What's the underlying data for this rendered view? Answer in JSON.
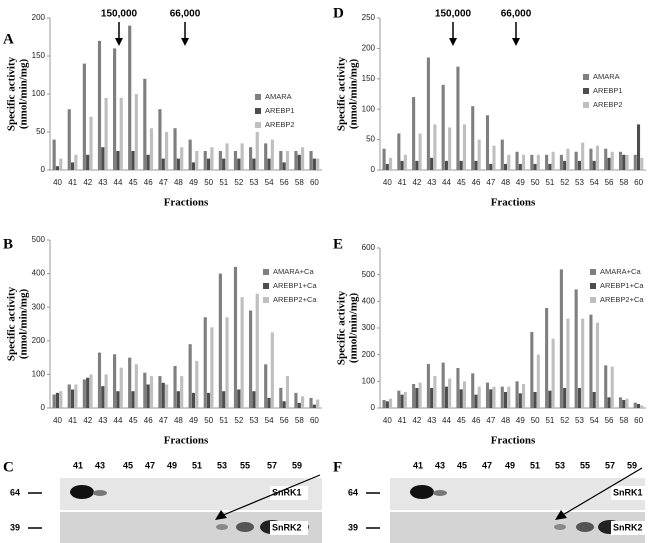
{
  "chart_data": [
    {
      "type": "bar",
      "panel": "A",
      "ylabel": [
        "Specific activity",
        "(nmol/min/mg)"
      ],
      "xlabel": "Fractions",
      "annotations": [
        "150,000",
        "66,000"
      ],
      "categories": [
        "40",
        "41",
        "42",
        "43",
        "44",
        "45",
        "46",
        "47",
        "48",
        "49",
        "50",
        "51",
        "52",
        "53",
        "54",
        "56",
        "58",
        "60"
      ],
      "ylim": [
        0,
        200
      ],
      "yticks": [
        0,
        50,
        100,
        150,
        200
      ],
      "series": [
        {
          "name": "AMARA",
          "color": "#7f7f7f",
          "values": [
            40,
            80,
            140,
            170,
            160,
            190,
            120,
            80,
            55,
            40,
            25,
            25,
            25,
            30,
            35,
            25,
            25,
            25
          ]
        },
        {
          "name": "AREBP1",
          "color": "#4d4d4d",
          "values": [
            5,
            10,
            20,
            30,
            25,
            25,
            20,
            15,
            15,
            10,
            15,
            15,
            15,
            15,
            15,
            10,
            20,
            15
          ]
        },
        {
          "name": "AREBP2",
          "color": "#bfbfbf",
          "values": [
            15,
            20,
            70,
            95,
            95,
            100,
            55,
            50,
            30,
            25,
            30,
            35,
            35,
            50,
            40,
            25,
            30,
            15
          ]
        }
      ]
    },
    {
      "type": "bar",
      "panel": "D",
      "ylabel": [
        "Specific activity",
        "(nmol/min/mg)"
      ],
      "xlabel": "Fractions",
      "annotations": [
        "150,000",
        "66,000"
      ],
      "categories": [
        "40",
        "41",
        "42",
        "43",
        "44",
        "45",
        "46",
        "47",
        "48",
        "49",
        "50",
        "51",
        "52",
        "53",
        "54",
        "56",
        "58",
        "60"
      ],
      "ylim": [
        0,
        250
      ],
      "yticks": [
        0,
        50,
        100,
        150,
        200,
        250
      ],
      "series": [
        {
          "name": "AMARA",
          "color": "#7f7f7f",
          "values": [
            35,
            60,
            120,
            185,
            140,
            170,
            105,
            90,
            50,
            30,
            25,
            25,
            25,
            30,
            35,
            35,
            30,
            25
          ]
        },
        {
          "name": "AREBP1",
          "color": "#4d4d4d",
          "values": [
            10,
            15,
            15,
            20,
            15,
            15,
            15,
            10,
            10,
            10,
            10,
            10,
            15,
            15,
            15,
            20,
            25,
            75
          ]
        },
        {
          "name": "AREBP2",
          "color": "#bfbfbf",
          "values": [
            20,
            25,
            60,
            75,
            70,
            75,
            50,
            40,
            25,
            25,
            25,
            30,
            35,
            45,
            40,
            30,
            25,
            20
          ]
        }
      ]
    },
    {
      "type": "bar",
      "panel": "B",
      "ylabel": [
        "Specific activity",
        "(nmol/min/mg)"
      ],
      "xlabel": "Fractions",
      "categories": [
        "40",
        "41",
        "42",
        "43",
        "44",
        "45",
        "46",
        "47",
        "48",
        "49",
        "50",
        "51",
        "52",
        "53",
        "54",
        "56",
        "58",
        "60"
      ],
      "ylim": [
        0,
        500
      ],
      "yticks": [
        0,
        100,
        200,
        300,
        400,
        500
      ],
      "series": [
        {
          "name": "AMARA+Ca",
          "color": "#7f7f7f",
          "values": [
            40,
            70,
            85,
            165,
            160,
            150,
            105,
            95,
            125,
            190,
            270,
            400,
            420,
            290,
            130,
            60,
            45,
            30
          ]
        },
        {
          "name": "AREBP1+Ca",
          "color": "#4d4d4d",
          "values": [
            45,
            55,
            90,
            65,
            50,
            50,
            70,
            75,
            50,
            45,
            45,
            50,
            55,
            50,
            30,
            20,
            15,
            10
          ]
        },
        {
          "name": "AREBP2+Ca",
          "color": "#bfbfbf",
          "values": [
            50,
            70,
            100,
            100,
            120,
            130,
            95,
            70,
            95,
            140,
            240,
            270,
            330,
            340,
            225,
            95,
            35,
            25
          ]
        }
      ]
    },
    {
      "type": "bar",
      "panel": "E",
      "ylabel": [
        "Specific activity",
        "(nmol/min/mg)"
      ],
      "xlabel": "Fractions",
      "categories": [
        "40",
        "41",
        "42",
        "43",
        "44",
        "45",
        "46",
        "47",
        "48",
        "49",
        "50",
        "51",
        "52",
        "53",
        "54",
        "56",
        "58",
        "60"
      ],
      "ylim": [
        0,
        600
      ],
      "yticks": [
        0,
        100,
        200,
        300,
        400,
        500,
        600
      ],
      "series": [
        {
          "name": "AMARA+Ca",
          "color": "#7f7f7f",
          "values": [
            30,
            65,
            90,
            165,
            170,
            150,
            130,
            95,
            80,
            100,
            285,
            375,
            520,
            445,
            350,
            160,
            40,
            20
          ]
        },
        {
          "name": "AREBP1+Ca",
          "color": "#4d4d4d",
          "values": [
            25,
            50,
            75,
            75,
            80,
            70,
            50,
            70,
            60,
            55,
            60,
            65,
            75,
            75,
            60,
            40,
            30,
            15
          ]
        },
        {
          "name": "AREBP2+Ca",
          "color": "#bfbfbf",
          "values": [
            35,
            60,
            95,
            120,
            110,
            100,
            80,
            80,
            80,
            90,
            200,
            260,
            335,
            335,
            320,
            155,
            35,
            10
          ]
        }
      ]
    }
  ],
  "blots": [
    {
      "panel": "C",
      "lanes": [
        41,
        43,
        45,
        47,
        49,
        51,
        53,
        55,
        57,
        59
      ],
      "markers": [
        64,
        39
      ],
      "proteins": [
        "SnRK1",
        "SnRK2"
      ]
    },
    {
      "panel": "F",
      "lanes": [
        41,
        43,
        45,
        47,
        49,
        51,
        53,
        55,
        57,
        59
      ],
      "markers": [
        64,
        39
      ],
      "proteins": [
        "SnRK1",
        "SnRK2"
      ]
    }
  ]
}
